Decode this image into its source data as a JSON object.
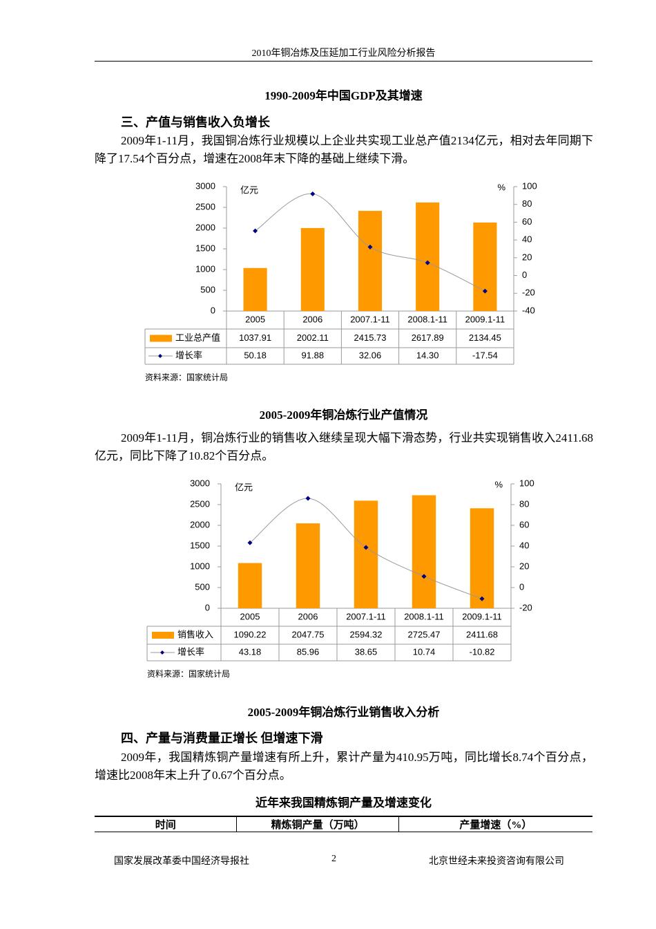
{
  "header": {
    "title": "2010年铜冶炼及压延加工行业风险分析报告"
  },
  "captions": [
    "1990-2009年中国GDP及其增速",
    "2005-2009年铜冶炼行业产值情况",
    "2005-2009年铜冶炼行业销售收入分析"
  ],
  "headings": [
    "三、产值与销售收入负增长",
    "四、产量与消费量正增长 但增速下滑"
  ],
  "paragraphs": [
    "2009年1-11月，我国铜冶炼行业规模以上企业共实现工业总产值2134亿元，相对去年同期下降了17.54个百分点，增速在2008年末下降的基础上继续下滑。",
    "2009年1-11月，铜冶炼行业的销售收入继续呈现大幅下滑态势，行业共实现销售收入2411.68亿元，同比下降了10.82个百分点。",
    "2009年，我国精炼铜产量增速有所上升，累计产量为410.95万吨，同比增长8.74个百分点，增速比2008年末上升了0.67个百分点。"
  ],
  "sources": [
    "资料来源：国家统计局",
    "资料来源：国家统计局"
  ],
  "table": {
    "title": "近年来我国精炼铜产量及增速变化",
    "columns": [
      "时间",
      "精炼铜产量（万吨）",
      "产量增速（%）"
    ]
  },
  "footer": {
    "left": "国家发展改革委中国经济导报社",
    "page": 2,
    "right": "北京世经未来投资咨询有限公司"
  },
  "chart_data": [
    {
      "type": "bar",
      "y_unit": "亿元",
      "y2_unit": "%",
      "categories": [
        "2005",
        "2006",
        "2007.1-11",
        "2008.1-11",
        "2009.1-11"
      ],
      "series": [
        {
          "name": "工业总产值",
          "type": "bar",
          "color": "#ff9900",
          "values": [
            1037.91,
            2002.11,
            2415.73,
            2617.89,
            2134.45
          ]
        },
        {
          "name": "增长率",
          "type": "line",
          "axis": "y2",
          "color": "#000080",
          "values": [
            50.18,
            91.88,
            32.06,
            14.3,
            -17.54
          ],
          "value_labels": [
            "50.18",
            "91.88",
            "32.06",
            "14.30",
            "-17.54"
          ]
        }
      ],
      "ylim": [
        0,
        3000
      ],
      "yticks": [
        0,
        500,
        1000,
        1500,
        2000,
        2500,
        3000
      ],
      "y2lim": [
        -40,
        100
      ],
      "y2ticks": [
        -40,
        -20,
        0,
        20,
        40,
        60,
        80,
        100
      ]
    },
    {
      "type": "bar",
      "y_unit": "亿元",
      "y2_unit": "%",
      "categories": [
        "2005",
        "2006",
        "2007.1-11",
        "2008.1-11",
        "2009.1-11"
      ],
      "series": [
        {
          "name": "销售收入",
          "type": "bar",
          "color": "#ff9900",
          "values": [
            1090.22,
            2047.75,
            2594.32,
            2725.47,
            2411.68
          ]
        },
        {
          "name": "增长率",
          "type": "line",
          "axis": "y2",
          "color": "#000080",
          "values": [
            43.18,
            85.96,
            38.65,
            10.74,
            -10.82
          ]
        }
      ],
      "ylim": [
        0,
        3000
      ],
      "yticks": [
        0,
        500,
        1000,
        1500,
        2000,
        2500,
        3000
      ],
      "y2lim": [
        -20,
        100
      ],
      "y2ticks": [
        -20,
        0,
        20,
        40,
        60,
        80,
        100
      ]
    }
  ]
}
